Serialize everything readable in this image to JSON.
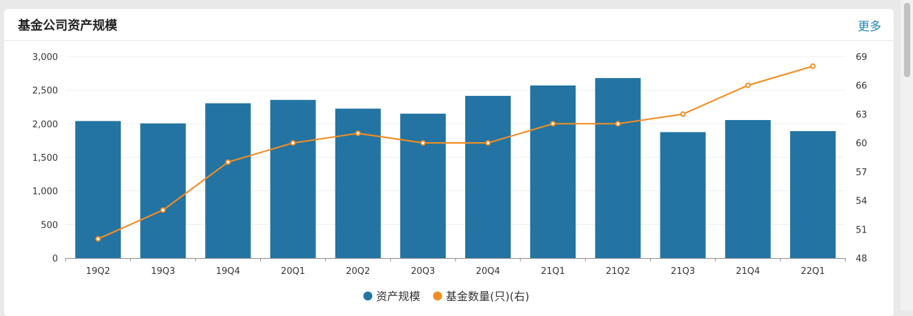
{
  "header": {
    "title": "基金公司资产规模",
    "more_label": "更多"
  },
  "colors": {
    "bar": "#2374a2",
    "line": "#f08d24",
    "axis": "#666666",
    "grid": "#eeeeee"
  },
  "chart_data": {
    "type": "bar",
    "categories": [
      "19Q2",
      "19Q3",
      "19Q4",
      "20Q1",
      "20Q2",
      "20Q3",
      "20Q4",
      "21Q1",
      "21Q2",
      "21Q3",
      "21Q4",
      "22Q1"
    ],
    "series": [
      {
        "name": "资产规模",
        "type": "bar",
        "axis": "left",
        "values": [
          2040,
          2005,
          2305,
          2355,
          2225,
          2150,
          2415,
          2570,
          2680,
          1875,
          2055,
          1890
        ]
      },
      {
        "name": "基金数量(只)(右)",
        "type": "line",
        "axis": "right",
        "values": [
          50,
          53,
          58,
          60,
          61,
          60,
          60,
          62,
          62,
          63,
          66,
          68
        ]
      }
    ],
    "y_left": {
      "min": 0,
      "max": 3000,
      "ticks": [
        "0",
        "500",
        "1,000",
        "1,500",
        "2,000",
        "2,500",
        "3,000"
      ]
    },
    "y_right": {
      "min": 48,
      "max": 69,
      "ticks": [
        "48",
        "51",
        "54",
        "57",
        "60",
        "63",
        "66",
        "69"
      ]
    },
    "legend": "bottom-center",
    "grid": true
  }
}
